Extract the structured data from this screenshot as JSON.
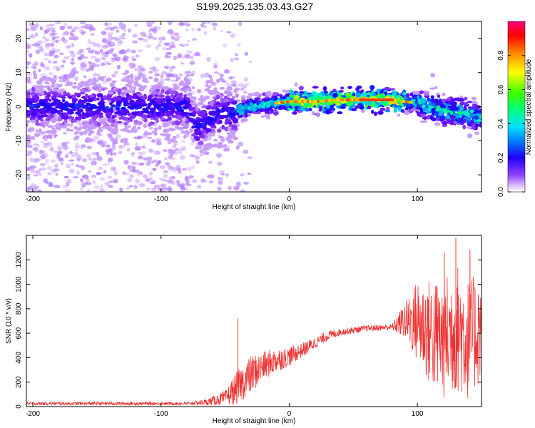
{
  "chart_data": [
    {
      "type": "heatmap",
      "title": "S199.2025.135.03.43.G27",
      "xlabel": "Height of straight line (km)",
      "ylabel": "Frequency (Hz)",
      "xlim": [
        -205,
        150
      ],
      "ylim": [
        -25,
        25
      ],
      "x_ticks": [
        -200,
        -100,
        0,
        100
      ],
      "y_ticks": [
        -20,
        -10,
        0,
        10,
        20
      ],
      "grid": false,
      "colorbar": {
        "label": "Normalized spectral amplitude",
        "range": [
          0,
          1
        ],
        "ticks": [
          "0.0",
          "0.2",
          "0.4",
          "0.6",
          "0.8"
        ],
        "colors": [
          "#ffffff",
          "#b070ff",
          "#7000ff",
          "#0000ff",
          "#00c0ff",
          "#00ff80",
          "#40ff00",
          "#ffff00",
          "#ff8000",
          "#ff0000",
          "#ff0080"
        ]
      },
      "ridge": {
        "x": [
          -205,
          -180,
          -150,
          -120,
          -100,
          -80,
          -72,
          -60,
          -55,
          -45,
          -38,
          -30,
          -20,
          -10,
          0,
          20,
          40,
          60,
          80,
          100,
          120,
          150
        ],
        "y": [
          0,
          0,
          0,
          0,
          0,
          0,
          -6,
          -3,
          -2,
          -2,
          -1,
          0,
          0.5,
          1,
          1.5,
          1.5,
          2,
          2,
          2,
          1,
          -1,
          -3
        ]
      }
    },
    {
      "type": "line",
      "xlabel": "Height of straight line (km)",
      "ylabel": "SNR (10 * v/v)",
      "xlim": [
        -205,
        150
      ],
      "ylim": [
        0,
        1400
      ],
      "x_ticks": [
        -200,
        -100,
        0,
        100
      ],
      "y_ticks": [
        0,
        200,
        400,
        600,
        800,
        1000,
        1200
      ],
      "grid": false,
      "color": "#ee3333",
      "envelope": {
        "x": [
          -205,
          -150,
          -80,
          -65,
          -50,
          -40,
          -30,
          -20,
          -10,
          0,
          10,
          20,
          30,
          40,
          60,
          80,
          90,
          100,
          110,
          120,
          130,
          140,
          150
        ],
        "center": [
          25,
          25,
          25,
          35,
          70,
          160,
          260,
          330,
          380,
          410,
          460,
          520,
          580,
          610,
          640,
          650,
          700,
          700,
          600,
          550,
          650,
          550,
          650
        ],
        "spread": [
          12,
          15,
          12,
          25,
          60,
          140,
          160,
          120,
          100,
          80,
          60,
          50,
          40,
          30,
          25,
          25,
          150,
          350,
          450,
          500,
          550,
          500,
          450
        ]
      },
      "spikes": [
        [
          -40,
          720
        ],
        [
          130,
          1380
        ],
        [
          121,
          1260
        ],
        [
          141,
          1280
        ]
      ]
    }
  ]
}
